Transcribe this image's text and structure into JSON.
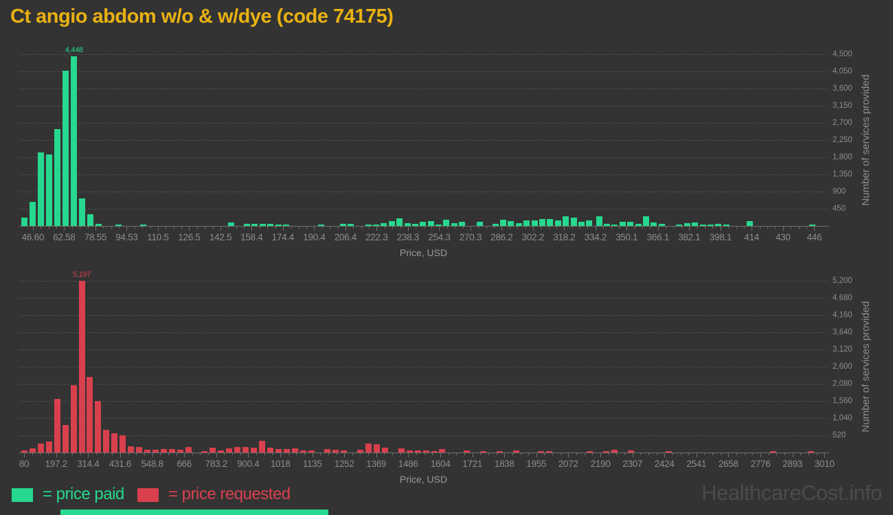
{
  "title": "Ct angio abdom w/o & w/dye (code 74175)",
  "watermark": "HealthcareCost.info",
  "legend": {
    "paid_label": "= price paid",
    "requested_label": "= price requested"
  },
  "colors": {
    "background": "#333333",
    "title": "#e9b112",
    "price_paid": "#26d98e",
    "price_requested": "#d9404e",
    "tick_text": "#8d8d8d",
    "watermark": "#4b4b4b",
    "gridline": "#4f4f4f"
  },
  "chart_data": [
    {
      "type": "bar",
      "name": "price paid histogram",
      "series_label": "price paid",
      "color": "#26d98e",
      "xlabel": "Price, USD",
      "ylabel": "Number of services provided",
      "grid": "dashed horizontal",
      "legend_position": "bottom-left",
      "peak_label": "4,448",
      "xlim": [
        39.6,
        452.9
      ],
      "ylim": [
        0,
        4500
      ],
      "x_tick_labels": [
        "46.60",
        "62.58",
        "78.55",
        "94.53",
        "110.5",
        "126.5",
        "142.5",
        "158.4",
        "174.4",
        "190.4",
        "206.4",
        "222.3",
        "238.3",
        "254.3",
        "270.3",
        "286.2",
        "302.2",
        "318.2",
        "334.2",
        "350.1",
        "366.1",
        "382.1",
        "398.1",
        "414",
        "430",
        "446"
      ],
      "y_tick_labels": [
        "450",
        "900",
        "1,350",
        "1,800",
        "2,250",
        "2,700",
        "3,150",
        "3,600",
        "4,050",
        "4,500"
      ],
      "points": [
        [
          42.4,
          220
        ],
        [
          46.6,
          635
        ],
        [
          50.8,
          1920
        ],
        [
          55,
          1875
        ],
        [
          59.2,
          2540
        ],
        [
          63.4,
          4075
        ],
        [
          67.6,
          4448
        ],
        [
          71.8,
          715
        ],
        [
          76,
          300
        ],
        [
          80.2,
          50
        ],
        [
          90.5,
          40
        ],
        [
          103,
          45
        ],
        [
          148,
          85
        ],
        [
          156,
          48
        ],
        [
          160,
          48
        ],
        [
          164,
          48
        ],
        [
          168,
          48
        ],
        [
          172,
          30
        ],
        [
          176,
          30
        ],
        [
          194,
          36
        ],
        [
          205,
          60
        ],
        [
          209,
          60
        ],
        [
          218,
          25
        ],
        [
          222,
          30
        ],
        [
          226,
          70
        ],
        [
          230,
          130
        ],
        [
          234,
          190
        ],
        [
          238,
          70
        ],
        [
          242,
          48
        ],
        [
          246,
          110
        ],
        [
          250,
          120
        ],
        [
          254,
          36
        ],
        [
          258,
          170
        ],
        [
          262,
          70
        ],
        [
          266,
          100
        ],
        [
          275,
          100
        ],
        [
          283,
          48
        ],
        [
          287,
          170
        ],
        [
          291,
          130
        ],
        [
          295,
          70
        ],
        [
          299,
          150
        ],
        [
          303,
          150
        ],
        [
          307,
          180
        ],
        [
          311,
          180
        ],
        [
          315,
          150
        ],
        [
          319,
          250
        ],
        [
          323,
          210
        ],
        [
          327,
          110
        ],
        [
          331,
          150
        ],
        [
          336,
          250
        ],
        [
          340,
          48
        ],
        [
          344,
          25
        ],
        [
          348,
          110
        ],
        [
          352,
          110
        ],
        [
          356,
          60
        ],
        [
          360,
          250
        ],
        [
          364,
          90
        ],
        [
          368,
          48
        ],
        [
          377,
          30
        ],
        [
          381,
          70
        ],
        [
          385,
          85
        ],
        [
          389,
          30
        ],
        [
          393,
          30
        ],
        [
          397,
          60
        ],
        [
          401,
          30
        ],
        [
          413,
          125
        ],
        [
          445,
          45
        ]
      ]
    },
    {
      "type": "bar",
      "name": "price requested histogram",
      "series_label": "price requested",
      "color": "#d9404e",
      "xlabel": "Price, USD",
      "ylabel": "Number of services provided",
      "grid": "dashed horizontal",
      "legend_position": "bottom-left",
      "peak_label": "5,197",
      "xlim": [
        62,
        3022
      ],
      "ylim": [
        0,
        5200
      ],
      "x_tick_labels": [
        "80",
        "197.2",
        "314.4",
        "431.6",
        "548.8",
        "666",
        "783.2",
        "900.4",
        "1018",
        "1135",
        "1252",
        "1369",
        "1486",
        "1604",
        "1721",
        "1838",
        "1955",
        "2072",
        "2190",
        "2307",
        "2424",
        "2541",
        "2658",
        "2776",
        "2893",
        "3010"
      ],
      "y_tick_labels": [
        "520",
        "1,040",
        "1,560",
        "2,080",
        "2,600",
        "3,120",
        "3,640",
        "4,160",
        "4,680",
        "5,200"
      ],
      "points": [
        [
          81,
          70
        ],
        [
          111,
          125
        ],
        [
          141,
          280
        ],
        [
          171,
          330
        ],
        [
          201,
          1620
        ],
        [
          231,
          840
        ],
        [
          261,
          2040
        ],
        [
          291,
          5197
        ],
        [
          321,
          2290
        ],
        [
          351,
          1560
        ],
        [
          381,
          680
        ],
        [
          411,
          580
        ],
        [
          441,
          520
        ],
        [
          471,
          195
        ],
        [
          501,
          175
        ],
        [
          531,
          85
        ],
        [
          561,
          90
        ],
        [
          591,
          95
        ],
        [
          621,
          95
        ],
        [
          651,
          90
        ],
        [
          681,
          175
        ],
        [
          741,
          35
        ],
        [
          771,
          155
        ],
        [
          801,
          70
        ],
        [
          831,
          125
        ],
        [
          861,
          175
        ],
        [
          891,
          175
        ],
        [
          921,
          155
        ],
        [
          951,
          350
        ],
        [
          981,
          140
        ],
        [
          1011,
          105
        ],
        [
          1041,
          105
        ],
        [
          1071,
          125
        ],
        [
          1101,
          55
        ],
        [
          1131,
          55
        ],
        [
          1191,
          105
        ],
        [
          1221,
          85
        ],
        [
          1251,
          70
        ],
        [
          1311,
          85
        ],
        [
          1341,
          280
        ],
        [
          1371,
          245
        ],
        [
          1401,
          140
        ],
        [
          1461,
          125
        ],
        [
          1491,
          70
        ],
        [
          1521,
          55
        ],
        [
          1551,
          55
        ],
        [
          1581,
          40
        ],
        [
          1611,
          100
        ],
        [
          1701,
          55
        ],
        [
          1761,
          35
        ],
        [
          1821,
          40
        ],
        [
          1881,
          55
        ],
        [
          1971,
          35
        ],
        [
          2001,
          35
        ],
        [
          2151,
          35
        ],
        [
          2211,
          35
        ],
        [
          2241,
          85
        ],
        [
          2301,
          55
        ],
        [
          2441,
          35
        ],
        [
          2821,
          28
        ],
        [
          2961,
          28
        ]
      ]
    }
  ]
}
